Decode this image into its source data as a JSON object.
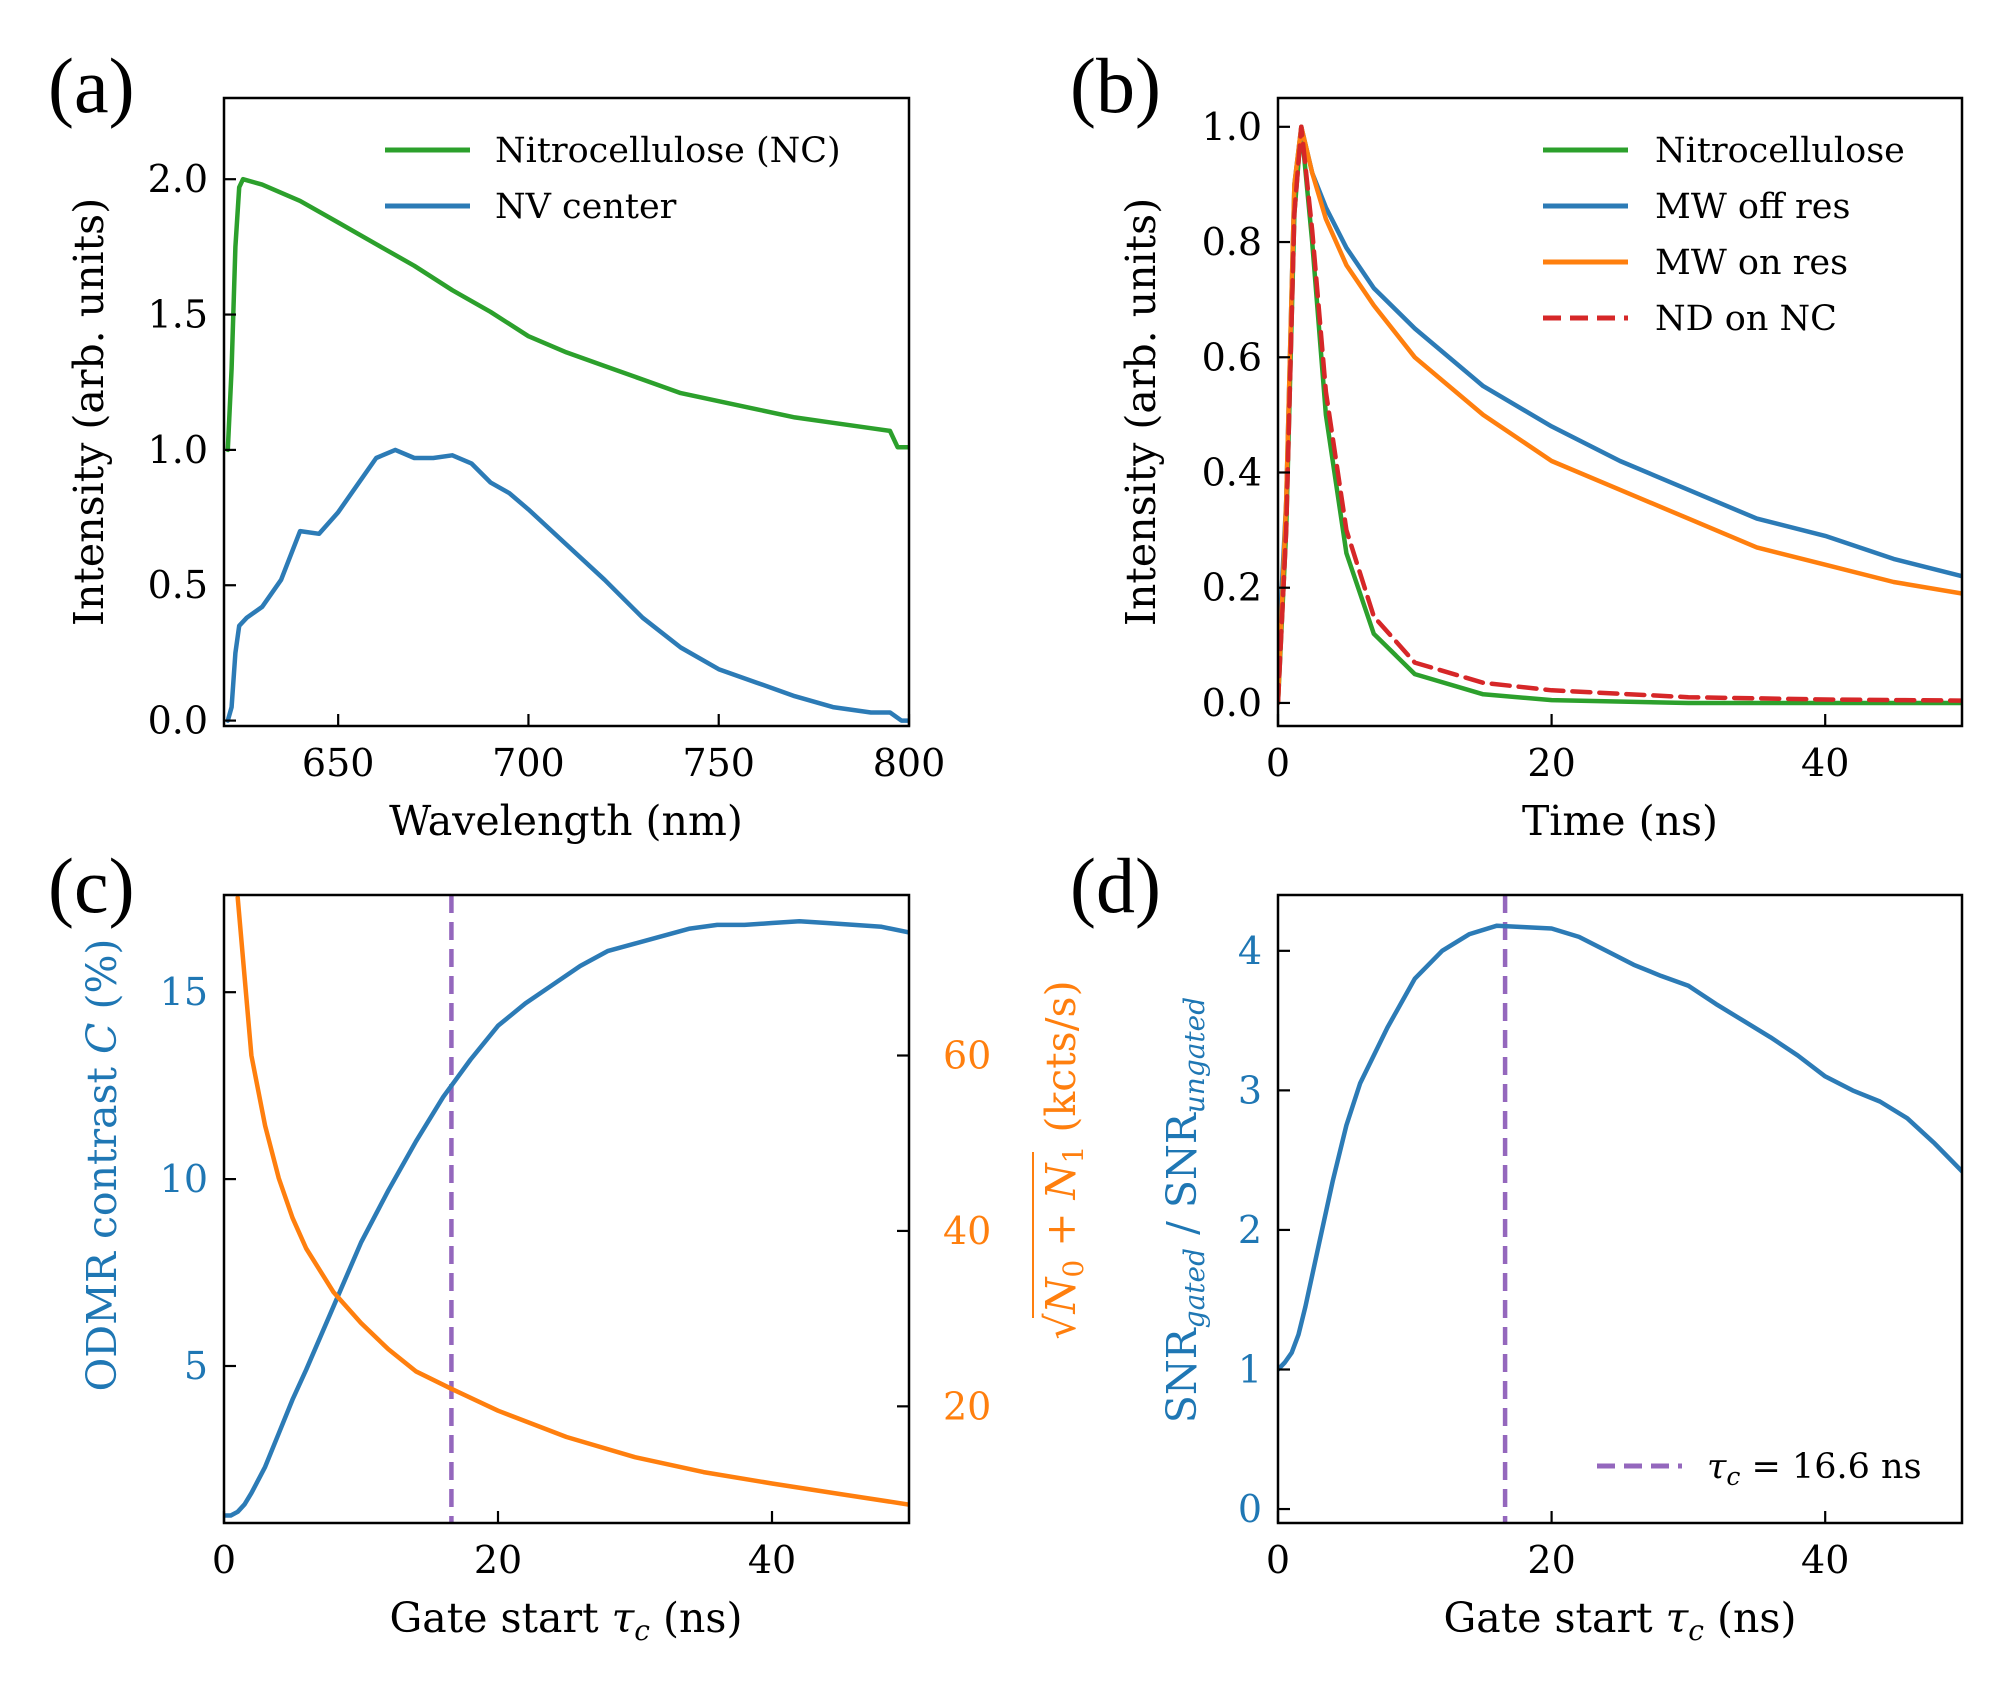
{
  "colors": {
    "blue": "#2c7bb6",
    "green": "#2ca02c",
    "orange": "#ff7f0e",
    "red": "#d62728",
    "purple": "#9467bd",
    "axis_blue": "#1f77b4",
    "axis_orange": "#ff7f0e"
  },
  "chart_data": [
    {
      "panel": "(a)",
      "type": "line",
      "xlabel": "Wavelength (nm)",
      "ylabel": "Intensity (arb. units)",
      "xlim": [
        620,
        800
      ],
      "ylim": [
        -0.02,
        2.3
      ],
      "xticks": [
        "650",
        "700",
        "750",
        "800"
      ],
      "xtick_values": [
        650,
        700,
        750,
        800
      ],
      "yticks": [
        "0.0",
        "0.5",
        "1.0",
        "1.5",
        "2.0"
      ],
      "ytick_values": [
        0.0,
        0.5,
        1.0,
        1.5,
        2.0
      ],
      "legend": "top-right",
      "series": [
        {
          "name": "Nitrocellulose (NC)",
          "color": "green",
          "x": [
            621,
            622,
            623,
            624,
            625,
            630,
            640,
            650,
            660,
            670,
            680,
            690,
            700,
            710,
            720,
            730,
            740,
            750,
            760,
            770,
            780,
            790,
            795,
            797,
            800
          ],
          "y": [
            1.0,
            1.3,
            1.75,
            1.97,
            2.0,
            1.98,
            1.92,
            1.84,
            1.76,
            1.68,
            1.59,
            1.51,
            1.42,
            1.36,
            1.31,
            1.26,
            1.21,
            1.18,
            1.15,
            1.12,
            1.1,
            1.08,
            1.07,
            1.01,
            1.01
          ]
        },
        {
          "name": "NV center",
          "color": "blue",
          "x": [
            621,
            622,
            623,
            624,
            626,
            630,
            635,
            640,
            645,
            650,
            655,
            660,
            665,
            670,
            675,
            680,
            685,
            690,
            695,
            700,
            710,
            720,
            730,
            740,
            750,
            760,
            770,
            780,
            790,
            795,
            798,
            800
          ],
          "y": [
            0.0,
            0.05,
            0.25,
            0.35,
            0.38,
            0.42,
            0.52,
            0.7,
            0.69,
            0.77,
            0.87,
            0.97,
            1.0,
            0.97,
            0.97,
            0.98,
            0.95,
            0.88,
            0.84,
            0.78,
            0.65,
            0.52,
            0.38,
            0.27,
            0.19,
            0.14,
            0.09,
            0.05,
            0.03,
            0.03,
            0.0,
            0.0
          ]
        }
      ]
    },
    {
      "panel": "(b)",
      "type": "line",
      "xlabel": "Time (ns)",
      "ylabel": "Intensity (arb. units)",
      "xlim": [
        0,
        50
      ],
      "ylim": [
        -0.04,
        1.05
      ],
      "xticks": [
        "0",
        "20",
        "40"
      ],
      "xtick_values": [
        0,
        20,
        40
      ],
      "yticks": [
        "0.0",
        "0.2",
        "0.4",
        "0.6",
        "0.8",
        "1.0"
      ],
      "ytick_values": [
        0.0,
        0.2,
        0.4,
        0.6,
        0.8,
        1.0
      ],
      "legend": "top-right",
      "series": [
        {
          "name": "Nitrocellulose",
          "color": "green",
          "dash": false,
          "x": [
            0,
            0.6,
            1.2,
            1.7,
            2.5,
            3.5,
            5,
            7,
            10,
            15,
            20,
            30,
            50
          ],
          "y": [
            0.0,
            0.3,
            0.85,
            1.0,
            0.8,
            0.5,
            0.26,
            0.12,
            0.05,
            0.015,
            0.005,
            0.0,
            0.0
          ]
        },
        {
          "name": "MW off res",
          "color": "blue",
          "dash": false,
          "x": [
            0,
            0.6,
            1.2,
            1.7,
            2.5,
            3.5,
            5,
            7,
            10,
            15,
            20,
            25,
            30,
            35,
            40,
            45,
            50
          ],
          "y": [
            0.07,
            0.35,
            0.9,
            1.0,
            0.92,
            0.86,
            0.79,
            0.72,
            0.65,
            0.55,
            0.48,
            0.42,
            0.37,
            0.32,
            0.29,
            0.25,
            0.22
          ]
        },
        {
          "name": "MW on res",
          "color": "orange",
          "dash": false,
          "x": [
            0,
            0.6,
            1.2,
            1.7,
            2.5,
            3.5,
            5,
            7,
            10,
            15,
            20,
            25,
            30,
            35,
            40,
            45,
            50
          ],
          "y": [
            0.0,
            0.35,
            0.9,
            1.0,
            0.92,
            0.84,
            0.76,
            0.69,
            0.6,
            0.5,
            0.42,
            0.37,
            0.32,
            0.27,
            0.24,
            0.21,
            0.19
          ]
        },
        {
          "name": "ND on NC",
          "color": "red",
          "dash": true,
          "x": [
            0,
            0.6,
            1.2,
            1.7,
            2.5,
            3.5,
            5,
            7,
            10,
            15,
            20,
            30,
            40,
            50
          ],
          "y": [
            0.0,
            0.3,
            0.85,
            1.0,
            0.82,
            0.54,
            0.3,
            0.15,
            0.07,
            0.035,
            0.022,
            0.01,
            0.006,
            0.004
          ]
        }
      ]
    },
    {
      "panel": "(c)",
      "type": "line",
      "xlabel": "Gate start τ_c (ns)",
      "xlabel_main": "Gate start ",
      "xlabel_sym": "τ",
      "xlabel_sub": "c",
      "xlabel_unit": " (ns)",
      "ylabel_left": "ODMR contrast C (%)",
      "ylabel_left_main": "ODMR contrast ",
      "ylabel_left_sym": "C",
      "ylabel_left_unit": " (%)",
      "ylabel_right": "√(N0 + N1) (kcts/s)",
      "ylabel_right_sqrt": "√",
      "ylabel_right_n": "N",
      "ylabel_right_sub0": "0",
      "ylabel_right_plus": " + ",
      "ylabel_right_sub1": "1",
      "ylabel_right_unit": " (kcts/s)",
      "xlim": [
        0,
        50
      ],
      "ylim_left": [
        0.8,
        17.6
      ],
      "ylim_right": [
        6.7,
        78.3
      ],
      "xticks": [
        "0",
        "20",
        "40"
      ],
      "xtick_values": [
        0,
        20,
        40
      ],
      "yticks_left": [
        "5",
        "10",
        "15"
      ],
      "ytick_values_left": [
        5,
        10,
        15
      ],
      "yticks_right": [
        "20",
        "40",
        "60"
      ],
      "ytick_values_right": [
        20,
        40,
        60
      ],
      "vline_x": 16.6,
      "series": [
        {
          "name": "ODMR contrast",
          "axis": "left",
          "color": "blue",
          "x": [
            0,
            0.5,
            1,
            1.5,
            2,
            3,
            4,
            5,
            6,
            8,
            10,
            12,
            14,
            16,
            18,
            20,
            22,
            24,
            26,
            28,
            30,
            32,
            34,
            36,
            38,
            40,
            42,
            44,
            46,
            48,
            50
          ],
          "y": [
            1.0,
            1.0,
            1.1,
            1.3,
            1.6,
            2.3,
            3.2,
            4.1,
            4.9,
            6.6,
            8.3,
            9.7,
            11.0,
            12.2,
            13.2,
            14.1,
            14.7,
            15.2,
            15.7,
            16.1,
            16.3,
            16.5,
            16.7,
            16.8,
            16.8,
            16.85,
            16.9,
            16.85,
            16.8,
            16.75,
            16.6
          ]
        },
        {
          "name": "sqrt(N0+N1)",
          "axis": "right",
          "color": "orange",
          "x": [
            1,
            2,
            3,
            4,
            5,
            6,
            8,
            10,
            12,
            14,
            16.6,
            20,
            25,
            30,
            35,
            40,
            45,
            50
          ],
          "y": [
            78,
            60,
            52,
            46,
            41.5,
            38,
            33,
            29.5,
            26.5,
            24,
            22,
            19.5,
            16.5,
            14.2,
            12.5,
            11.2,
            10.0,
            8.8
          ]
        }
      ]
    },
    {
      "panel": "(d)",
      "type": "line",
      "xlabel": "Gate start τ_c (ns)",
      "xlabel_main": "Gate start ",
      "xlabel_sym": "τ",
      "xlabel_sub": "c",
      "xlabel_unit": " (ns)",
      "ylabel": "SNR_gated / SNR_ungated",
      "ylabel_a": "SNR",
      "ylabel_a_sub": "gated",
      "ylabel_sep": " / ",
      "ylabel_b": "SNR",
      "ylabel_b_sub": "ungated",
      "xlim": [
        0,
        50
      ],
      "ylim": [
        -0.1,
        4.4
      ],
      "xticks": [
        "0",
        "20",
        "40"
      ],
      "xtick_values": [
        0,
        20,
        40
      ],
      "yticks": [
        "0",
        "1",
        "2",
        "3",
        "4"
      ],
      "ytick_values": [
        0,
        1,
        2,
        3,
        4
      ],
      "vline_x": 16.6,
      "legend": "bottom-right",
      "legend_label": "τc = 16.6 ns",
      "legend_sym": "τ",
      "legend_sub": "c",
      "legend_val": " = 16.6 ns",
      "series": [
        {
          "name": "SNR ratio",
          "color": "blue",
          "x": [
            0,
            0.5,
            1,
            1.5,
            2,
            3,
            4,
            5,
            6,
            8,
            10,
            12,
            14,
            16,
            18,
            20,
            22,
            24,
            26,
            28,
            30,
            32,
            34,
            36,
            38,
            40,
            42,
            44,
            46,
            48,
            50
          ],
          "y": [
            1.0,
            1.05,
            1.12,
            1.25,
            1.45,
            1.9,
            2.35,
            2.75,
            3.05,
            3.45,
            3.8,
            4.0,
            4.12,
            4.18,
            4.17,
            4.16,
            4.1,
            4.0,
            3.9,
            3.82,
            3.75,
            3.62,
            3.5,
            3.38,
            3.25,
            3.1,
            3.0,
            2.92,
            2.8,
            2.62,
            2.42
          ]
        }
      ]
    }
  ]
}
